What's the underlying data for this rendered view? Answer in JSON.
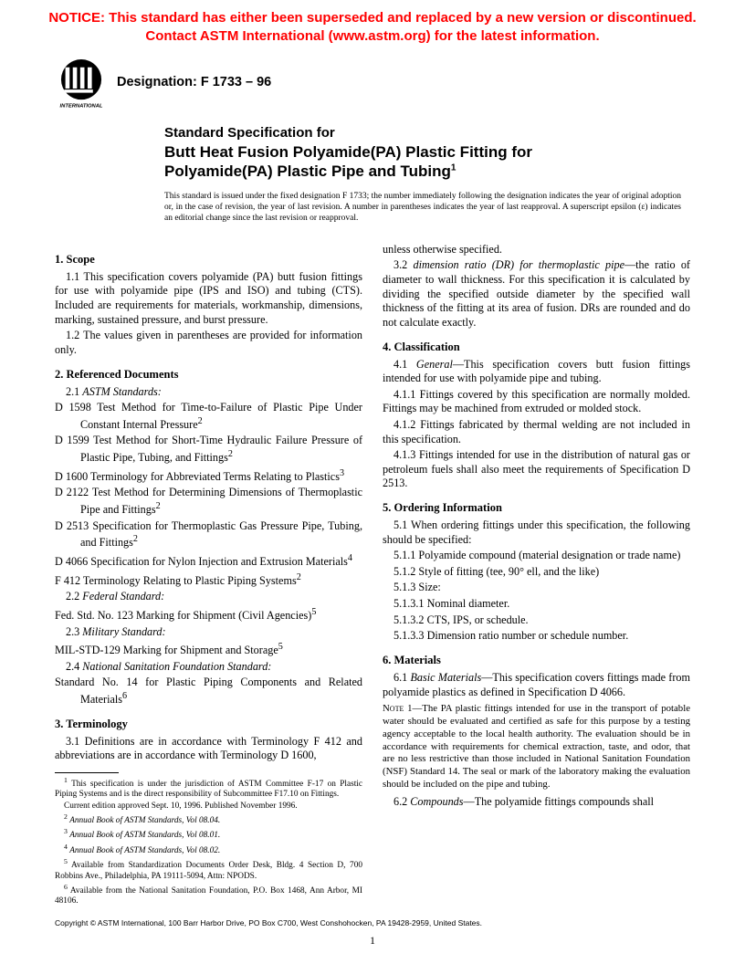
{
  "notice": {
    "line1": "NOTICE: This standard has either been superseded and replaced by a new version or discontinued.",
    "line2": "Contact ASTM International (www.astm.org) for the latest information.",
    "color": "#ff0000"
  },
  "logo": {
    "label": "ASTM",
    "sublabel": "INTERNATIONAL"
  },
  "designation": "Designation: F 1733 – 96",
  "title": {
    "pre": "Standard Specification for",
    "main_l1": "Butt Heat Fusion Polyamide(PA) Plastic Fitting for",
    "main_l2": "Polyamide(PA) Plastic Pipe and Tubing",
    "sup": "1"
  },
  "issuance": "This standard is issued under the fixed designation F 1733; the number immediately following the designation indicates the year of original adoption or, in the case of revision, the year of last revision. A number in parentheses indicates the year of last reapproval. A superscript epsilon (ε) indicates an editorial change since the last revision or reapproval.",
  "left": {
    "s1_head": "1.  Scope",
    "s1_1": "1.1 This specification covers polyamide (PA) butt fusion fittings for use with polyamide pipe (IPS and ISO) and tubing (CTS). Included are requirements for materials, workmanship, dimensions, marking, sustained pressure, and burst pressure.",
    "s1_2": "1.2 The values given in parentheses are provided for information only.",
    "s2_head": "2.  Referenced Documents",
    "s2_1_label": "2.1 ",
    "s2_1_ital": "ASTM Standards:",
    "refs_astm": [
      {
        "t": "D 1598  Test Method for Time-to-Failure of Plastic Pipe Under Constant Internal Pressure",
        "s": "2"
      },
      {
        "t": "D 1599  Test Method for Short-Time Hydraulic Failure Pressure of Plastic Pipe, Tubing, and Fittings",
        "s": "2"
      },
      {
        "t": "D 1600  Terminology for Abbreviated Terms Relating to Plastics",
        "s": "3"
      },
      {
        "t": "D 2122  Test Method for Determining Dimensions of Thermoplastic Pipe and Fittings",
        "s": "2"
      },
      {
        "t": "D 2513  Specification for Thermoplastic Gas Pressure Pipe, Tubing, and Fittings",
        "s": "2"
      },
      {
        "t": "D 4066  Specification for Nylon Injection and Extrusion Materials",
        "s": "4"
      },
      {
        "t": "F 412  Terminology Relating to Plastic Piping Systems",
        "s": "2"
      }
    ],
    "s2_2_label": "2.2 ",
    "s2_2_ital": "Federal Standard:",
    "ref_fed": {
      "t": "Fed. Std. No. 123  Marking for Shipment (Civil Agencies)",
      "s": "5"
    },
    "s2_3_label": "2.3 ",
    "s2_3_ital": "Military Standard:",
    "ref_mil": {
      "t": "MIL-STD-129  Marking for Shipment and Storage",
      "s": "5"
    },
    "s2_4_label": "2.4 ",
    "s2_4_ital": "National Sanitation Foundation Standard:",
    "ref_nsf": {
      "t": "Standard No. 14  for Plastic Piping Components and Related Materials",
      "s": "6"
    },
    "s3_head": "3.  Terminology",
    "s3_1": "3.1 Definitions are in accordance with Terminology F 412 and abbreviations are in accordance with Terminology D 1600,",
    "footnotes": [
      {
        "n": "1",
        "t": "This specification is under the jurisdiction of ASTM Committee F-17 on Plastic Piping Systems and is the direct responsibility of Subcommittee F17.10 on Fittings."
      },
      {
        "n": "",
        "t": "Current edition approved Sept. 10, 1996. Published November 1996."
      },
      {
        "n": "2",
        "t": "Annual Book of ASTM Standards, Vol 08.04.",
        "i": true
      },
      {
        "n": "3",
        "t": "Annual Book of ASTM Standards, Vol 08.01.",
        "i": true
      },
      {
        "n": "4",
        "t": "Annual Book of ASTM Standards, Vol 08.02.",
        "i": true
      },
      {
        "n": "5",
        "t": "Available from Standardization Documents Order Desk, Bldg. 4 Section D, 700 Robbins Ave., Philadelphia, PA 19111-5094, Attn: NPODS."
      },
      {
        "n": "6",
        "t": "Available from the National Sanitation Foundation, P.O. Box 1468, Ann Arbor, MI 48106."
      }
    ]
  },
  "right": {
    "cont": "unless otherwise specified.",
    "s3_2_a": "3.2 ",
    "s3_2_ital": "dimension ratio (DR) for thermoplastic pipe",
    "s3_2_b": "—the ratio of diameter to wall thickness. For this specification it is calculated by dividing the specified outside diameter by the specified wall thickness of the fitting at its area of fusion. DRs are rounded and do not calculate exactly.",
    "s4_head": "4.  Classification",
    "s4_1_a": "4.1 ",
    "s4_1_ital": "General",
    "s4_1_b": "—This specification covers butt fusion fittings intended for use with polyamide pipe and tubing.",
    "s4_1_1": "4.1.1 Fittings covered by this specification are normally molded. Fittings may be machined from extruded or molded stock.",
    "s4_1_2": "4.1.2 Fittings fabricated by thermal welding are not included in this specification.",
    "s4_1_3": "4.1.3 Fittings intended for use in the distribution of natural gas or petroleum fuels shall also meet the requirements of Specification D 2513.",
    "s5_head": "5.  Ordering Information",
    "s5_1": "5.1 When ordering fittings under this specification, the following should be specified:",
    "s5_1_1": "5.1.1 Polyamide compound (material designation or trade name)",
    "s5_1_2": "5.1.2 Style of fitting (tee, 90° ell, and the like)",
    "s5_1_3": "5.1.3 Size:",
    "s5_1_3_1": "5.1.3.1 Nominal diameter.",
    "s5_1_3_2": "5.1.3.2 CTS, IPS, or schedule.",
    "s5_1_3_3": "5.1.3.3 Dimension ratio number or schedule number.",
    "s6_head": "6.  Materials",
    "s6_1_a": "6.1 ",
    "s6_1_ital": "Basic Materials",
    "s6_1_b": "—This specification covers fittings made from polyamide plastics as defined in Specification D 4066.",
    "note1_label": "Note 1—",
    "note1": "The PA plastic fittings intended for use in the transport of potable water should be evaluated and certified as safe for this purpose by a testing agency acceptable to the local health authority. The evaluation should be in accordance with requirements for chemical extraction, taste, and odor, that are no less restrictive than those included in National Sanitation Foundation (NSF) Standard 14. The seal or mark of the laboratory making the evaluation should be included on the pipe and tubing.",
    "s6_2_a": "6.2 ",
    "s6_2_ital": "Compounds",
    "s6_2_b": "—The polyamide fittings compounds shall"
  },
  "copyright": "Copyright © ASTM International, 100 Barr Harbor Drive, PO Box C700, West Conshohocken, PA 19428-2959, United States.",
  "pagenum": "1"
}
